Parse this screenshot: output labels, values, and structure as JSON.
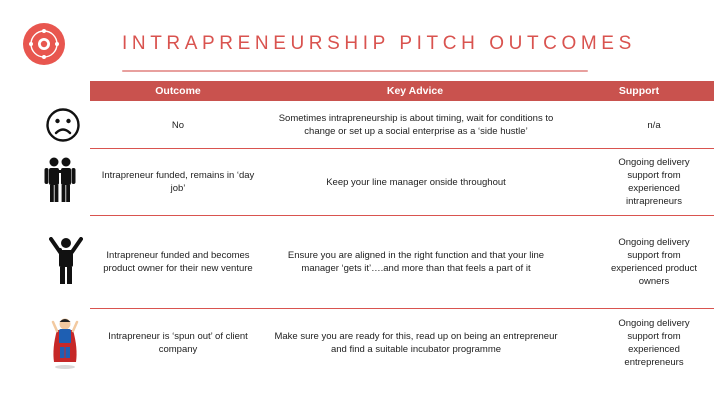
{
  "title": "INTRAPRENEURSHIP PITCH OUTCOMES",
  "logo": {
    "icon": "circle-of-young-intrapreneurs-logo",
    "color": "#e8564f"
  },
  "accent_color": "#c9524e",
  "headers": {
    "outcome": "Outcome",
    "advice": "Key Advice",
    "support": "Support"
  },
  "rows": [
    {
      "icon": "sad-face-icon",
      "outcome": "No",
      "advice": "Sometimes intrapreneurship is about timing, wait for conditions to change or set up a social enterprise as a ‘side hustle’",
      "support": "n/a"
    },
    {
      "icon": "two-people-icon",
      "outcome": "Intrapreneur funded, remains in ‘day job’",
      "advice": "Keep your line manager onside throughout",
      "support": "Ongoing delivery support from experienced intrapreneurs"
    },
    {
      "icon": "celebrating-person-icon",
      "outcome": "Intrapreneur funded and becomes product owner for their new venture",
      "advice": "Ensure you are aligned in the right function and that your line manager ‘gets it’….and more than that feels a part of it",
      "support": "Ongoing delivery support from experienced product owners"
    },
    {
      "icon": "superhero-icon",
      "outcome": "Intrapreneur is ‘spun out’ of client company",
      "advice": "Make sure you are ready for this, read up on being an entrepreneur and find a suitable incubator programme",
      "support": "Ongoing delivery support from experienced entrepreneurs"
    }
  ]
}
